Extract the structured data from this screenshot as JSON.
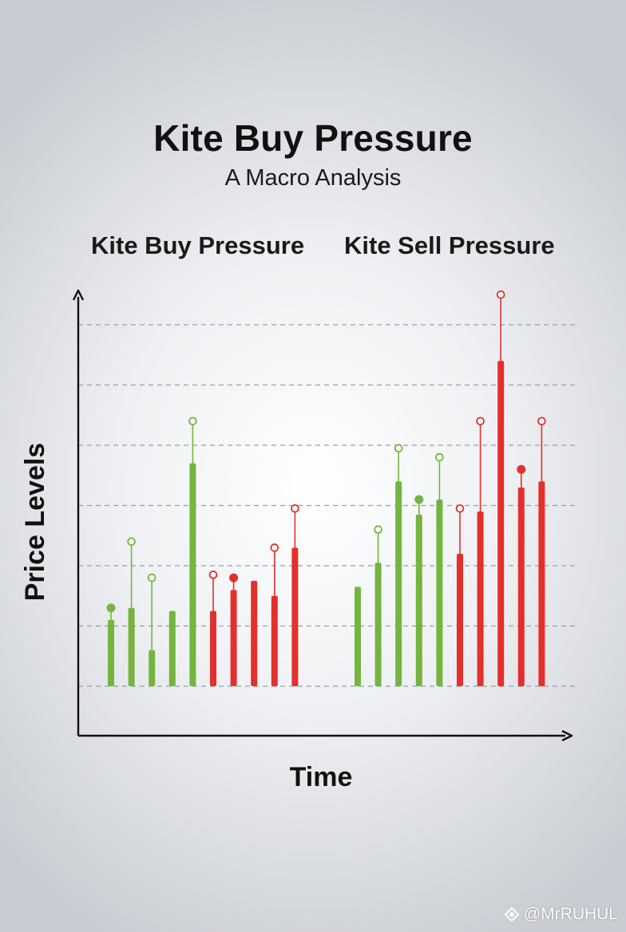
{
  "title": "Kite Buy Pressure",
  "subtitle": "A Macro Analysis",
  "sections": {
    "left": "Kite Buy Pressure",
    "right": "Kite Sell Pressure"
  },
  "watermark": {
    "text": "@MrRUHUL",
    "icon": "diamond-logo-icon"
  },
  "colors": {
    "buy": "#73b53e",
    "sell": "#e3302c",
    "grid": "#9a9ea6",
    "axis": "#111111"
  },
  "chart_data": {
    "type": "bar",
    "xlabel": "Time",
    "ylabel": "Price Levels",
    "grid": true,
    "ylim": [
      0,
      8.3
    ],
    "groups": [
      {
        "name": "Kite Buy Pressure",
        "bars": [
          {
            "value": 1.1,
            "color": "buy",
            "wick_top": 1.3,
            "marker": "filled"
          },
          {
            "value": 1.3,
            "color": "buy",
            "wick_top": 2.4,
            "marker": "open"
          },
          {
            "value": 0.6,
            "color": "buy",
            "wick_top": 1.8,
            "marker": "open"
          },
          {
            "value": 1.25,
            "color": "buy",
            "wick_top": null,
            "marker": "none"
          },
          {
            "value": 3.7,
            "color": "buy",
            "wick_top": 4.4,
            "marker": "open"
          },
          {
            "value": 1.25,
            "color": "sell",
            "wick_top": 1.85,
            "marker": "open"
          },
          {
            "value": 1.6,
            "color": "sell",
            "wick_top": 1.8,
            "marker": "filled"
          },
          {
            "value": 1.75,
            "color": "sell",
            "wick_top": null,
            "marker": "none"
          },
          {
            "value": 1.5,
            "color": "sell",
            "wick_top": 2.3,
            "marker": "open"
          },
          {
            "value": 2.3,
            "color": "sell",
            "wick_top": 2.95,
            "marker": "open"
          }
        ]
      },
      {
        "name": "Kite Sell Pressure",
        "bars": [
          {
            "value": 1.65,
            "color": "buy",
            "wick_top": null,
            "marker": "none"
          },
          {
            "value": 2.05,
            "color": "buy",
            "wick_top": 2.6,
            "marker": "open"
          },
          {
            "value": 3.4,
            "color": "buy",
            "wick_top": 3.95,
            "marker": "open"
          },
          {
            "value": 2.85,
            "color": "buy",
            "wick_top": 3.1,
            "marker": "filled"
          },
          {
            "value": 3.1,
            "color": "buy",
            "wick_top": 3.8,
            "marker": "open"
          },
          {
            "value": 2.2,
            "color": "sell",
            "wick_top": 2.95,
            "marker": "open"
          },
          {
            "value": 2.9,
            "color": "sell",
            "wick_top": 4.4,
            "marker": "open"
          },
          {
            "value": 5.4,
            "color": "sell",
            "wick_top": 6.5,
            "marker": "open"
          },
          {
            "value": 3.3,
            "color": "sell",
            "wick_top": 3.6,
            "marker": "filled"
          },
          {
            "value": 3.4,
            "color": "sell",
            "wick_top": 4.4,
            "marker": "open"
          }
        ]
      }
    ]
  }
}
